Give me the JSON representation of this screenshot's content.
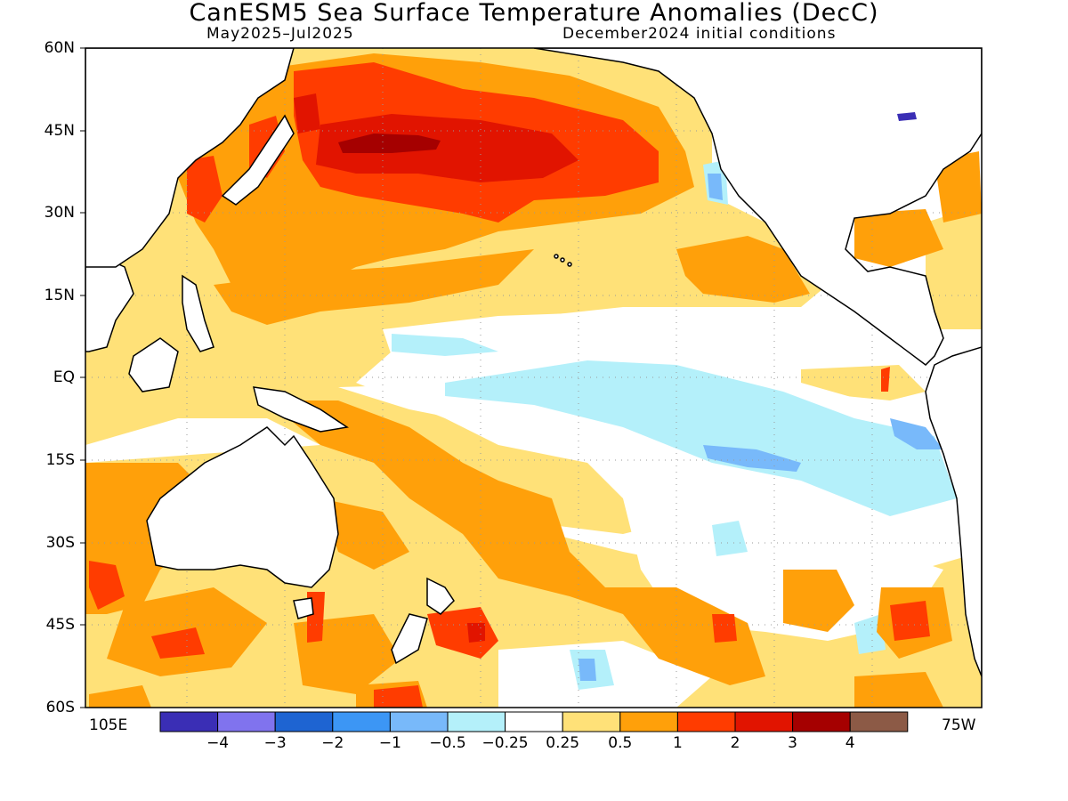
{
  "header": {
    "title": "CanESM5 Sea Surface Temperature Anomalies (DecC)",
    "period": "May2025–Jul2025",
    "initial_conditions": "December2024 initial conditions"
  },
  "map": {
    "region": "Pacific Ocean",
    "lat_labels": [
      "60N",
      "45N",
      "30N",
      "15N",
      "EQ",
      "15S",
      "30S",
      "45S",
      "60S"
    ],
    "lon_labels": [
      "105E",
      "75W"
    ],
    "lat_range": [
      -60,
      60
    ],
    "lon_range_desc": [
      "105E",
      "75W"
    ],
    "grid": true,
    "land_color": "#ffffff",
    "coast_color": "#000000"
  },
  "colorbar": {
    "labels": [
      "−4",
      "−3",
      "−2",
      "−1",
      "−0.5",
      "−0.25",
      "0.25",
      "0.5",
      "1",
      "2",
      "3",
      "4"
    ],
    "colors": [
      "#3a2eb5",
      "#8073ee",
      "#1e64d2",
      "#3c96f5",
      "#78b9fa",
      "#b4f0fa",
      "#ffffff",
      "#ffe178",
      "#ffa00a",
      "#ff3c00",
      "#e11400",
      "#a50000",
      "#8c5a46"
    ]
  }
}
